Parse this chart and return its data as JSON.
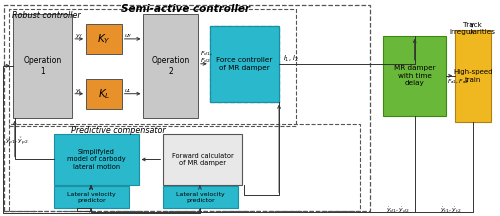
{
  "title": "Semi-active controller",
  "robust_label": "Robust controller",
  "predictive_label": "Predictive compensator",
  "bg_color": "#ffffff",
  "gray_box_color": "#c8c8c8",
  "orange_box_color": "#e8912a",
  "cyan_box_color": "#2ab8cc",
  "green_box_color": "#6ab83a",
  "yellow_box_color": "#f0b820",
  "arrow_color": "#333333",
  "box_border_color": "#555555"
}
